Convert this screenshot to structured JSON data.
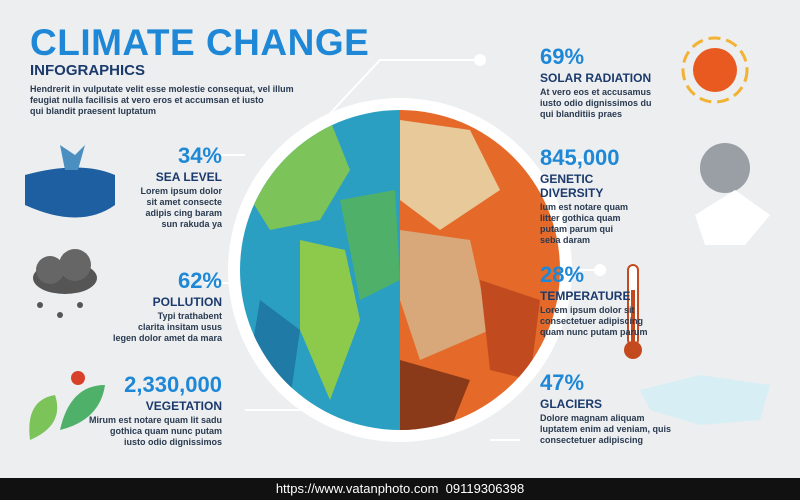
{
  "header": {
    "title": "CLIMATE CHANGE",
    "subtitle": "INFOGRAPHICS",
    "lines": [
      "Hendrerit in vulputate velit esse molestie consequat, vel illum",
      "feugiat nulla facilisis at vero eros et accumsan et iusto",
      "qui blandit praesent luptatum"
    ]
  },
  "left_items": [
    {
      "value": "34%",
      "label": [
        "SEA LEVEL"
      ],
      "lines": [
        "Lorem ipsum dolor",
        "sit amet consecte",
        "adipis cing baram",
        "sun rakuda ya"
      ]
    },
    {
      "value": "62%",
      "label": [
        "POLLUTION"
      ],
      "lines": [
        "Typi trathabent",
        "clarita insitam usus",
        "legen dolor amet da mara"
      ]
    },
    {
      "value": "2,330,000",
      "label": [
        "VEGETATION"
      ],
      "lines": [
        "Mirum est notare quam lit sadu",
        "gothica quam nunc putam",
        "iusto odio dignissimos"
      ]
    }
  ],
  "right_items": [
    {
      "value": "69%",
      "label": [
        "SOLAR RADIATION"
      ],
      "lines": [
        "At vero eos et accusamus",
        "iusto odio dignissimos du",
        "qui blanditiis praes"
      ]
    },
    {
      "value": "845,000",
      "label": [
        "GENETIC",
        "DIVERSITY"
      ],
      "lines": [
        "lum est notare quam",
        "litter gothica quam",
        "putam parum qui",
        "seba daram"
      ]
    },
    {
      "value": "28%",
      "label": [
        "TEMPERATURE"
      ],
      "lines": [
        "Lorem ipsum dolor sit",
        "consectetuer adipiscing",
        "quam nunc putam parum"
      ]
    },
    {
      "value": "47%",
      "label": [
        "GLACIERS"
      ],
      "lines": [
        "Dolore magnam aliquam",
        "luptatem enim ad veniam, quis",
        "consectetuer adipiscing"
      ]
    }
  ],
  "footer": "https://www.vatanphoto.com  09119306398"
}
